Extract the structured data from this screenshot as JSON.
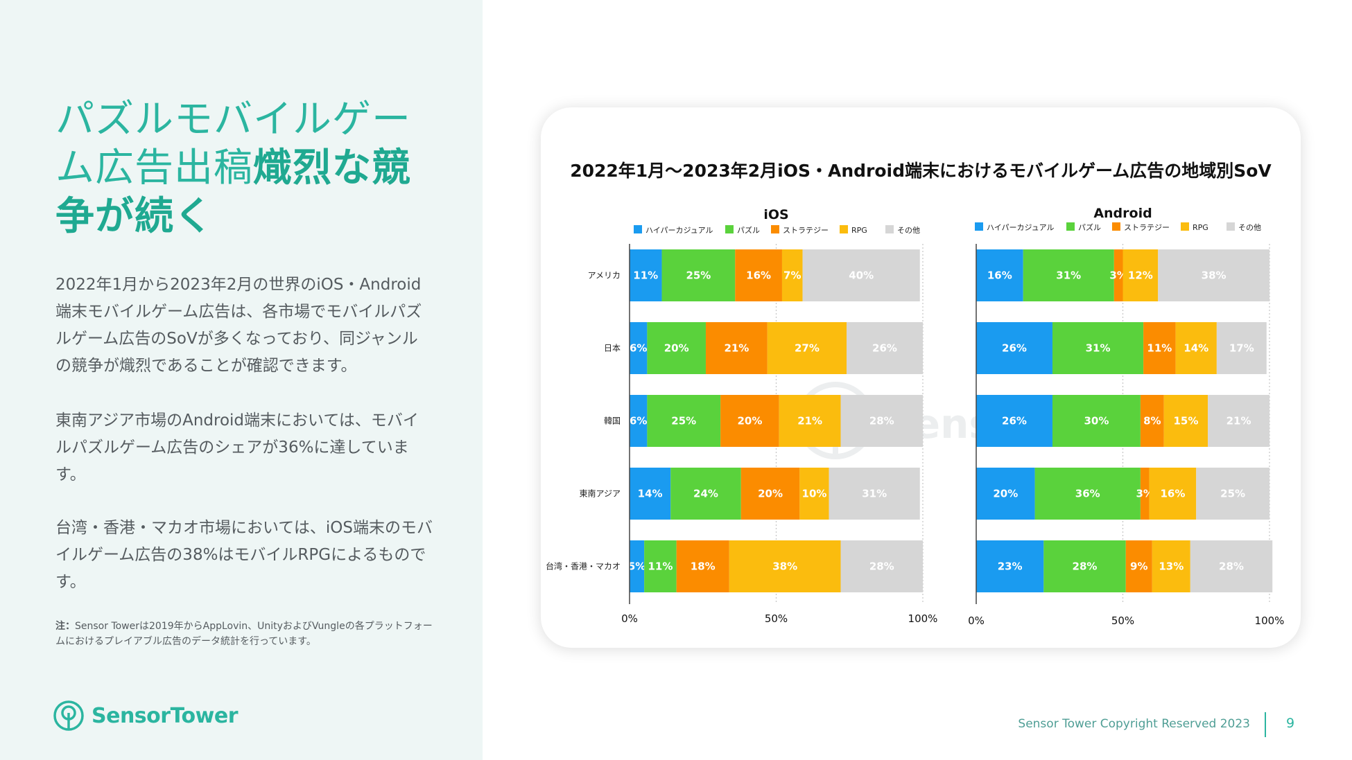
{
  "slide": {
    "title_part1": "パズルモバイルゲーム広告出稿",
    "title_highlight": "熾烈な競争が続く",
    "paragraph1": "2022年1月から2023年2月の世界のiOS・Android端末モバイルゲーム広告は、各市場でモバイルパズルゲーム広告のSoVが多くなっており、同ジャンルの競争が熾烈であることが確認できます。",
    "paragraph2": "東南アジア市場のAndroid端末においては、モバイルパズルゲーム広告のシェアが36%に達しています。",
    "paragraph3": "台湾・香港・マカオ市場においては、iOS端末のモバイルゲーム広告の38%はモバイルRPGによるものです。",
    "note_label": "注：",
    "note_text": "Sensor Towerは2019年からAppLovin、UnityおよびVungleの各プラットフォームにおけるプレイアブル広告のデータ統計を行っています。",
    "logo_text": "SensorTower",
    "footer": "Sensor Tower Copyright Reserved 2023",
    "page_number": "9",
    "watermark": "Sensor Tower"
  },
  "colors": {
    "accent": "#2bb5a0",
    "hypercasual": "#1a9bf0",
    "puzzle": "#5ad23c",
    "strategy": "#fb8c00",
    "rpg": "#fbbc0e",
    "other": "#d6d6d6"
  },
  "chart_data": {
    "type": "bar",
    "orientation": "horizontal",
    "stacked": true,
    "title": "2022年1月～2023年2月iOS・Android端末におけるモバイルゲーム広告の地域別SoV",
    "legend": [
      "ハイパーカジュアル",
      "パズル",
      "ストラテジー",
      "RPG",
      "その他"
    ],
    "categories": [
      "アメリカ",
      "日本",
      "韓国",
      "東南アジア",
      "台湾・香港・マカオ"
    ],
    "x_ticks": [
      "0%",
      "50%",
      "100%"
    ],
    "xlim": [
      0,
      100
    ],
    "panels": [
      {
        "name": "iOS",
        "series": [
          {
            "name": "ハイパーカジュアル",
            "values": [
              11,
              6,
              6,
              14,
              5
            ]
          },
          {
            "name": "パズル",
            "values": [
              25,
              20,
              25,
              24,
              11
            ]
          },
          {
            "name": "ストラテジー",
            "values": [
              16,
              21,
              20,
              20,
              18
            ]
          },
          {
            "name": "RPG",
            "values": [
              7,
              27,
              21,
              10,
              38
            ]
          },
          {
            "name": "その他",
            "values": [
              40,
              26,
              28,
              31,
              28
            ]
          }
        ]
      },
      {
        "name": "Android",
        "series": [
          {
            "name": "ハイパーカジュアル",
            "values": [
              16,
              26,
              26,
              20,
              23
            ]
          },
          {
            "name": "パズル",
            "values": [
              31,
              31,
              30,
              36,
              28
            ]
          },
          {
            "name": "ストラテジー",
            "values": [
              3,
              11,
              8,
              3,
              9
            ]
          },
          {
            "name": "RPG",
            "values": [
              12,
              14,
              15,
              16,
              13
            ]
          },
          {
            "name": "その他",
            "values": [
              38,
              17,
              21,
              25,
              28
            ]
          }
        ]
      }
    ]
  }
}
